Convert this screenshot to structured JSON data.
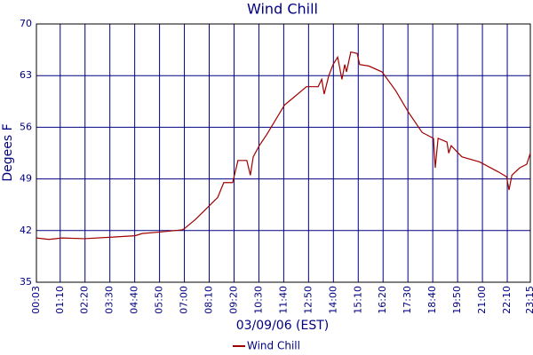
{
  "chart_data": {
    "type": "line",
    "title": "Wind Chill",
    "x_label": "03/09/06 (EST)",
    "y_label": "Degees F",
    "xlim": [
      3,
      1395
    ],
    "xticks": [
      {
        "value": 3,
        "label": "00:03"
      },
      {
        "value": 70,
        "label": "01:10"
      },
      {
        "value": 140,
        "label": "02:20"
      },
      {
        "value": 210,
        "label": "03:30"
      },
      {
        "value": 280,
        "label": "04:40"
      },
      {
        "value": 350,
        "label": "05:50"
      },
      {
        "value": 420,
        "label": "07:00"
      },
      {
        "value": 490,
        "label": "08:10"
      },
      {
        "value": 560,
        "label": "09:20"
      },
      {
        "value": 630,
        "label": "10:30"
      },
      {
        "value": 700,
        "label": "11:40"
      },
      {
        "value": 770,
        "label": "12:50"
      },
      {
        "value": 840,
        "label": "14:00"
      },
      {
        "value": 910,
        "label": "15:10"
      },
      {
        "value": 980,
        "label": "16:20"
      },
      {
        "value": 1050,
        "label": "17:30"
      },
      {
        "value": 1120,
        "label": "18:40"
      },
      {
        "value": 1190,
        "label": "19:50"
      },
      {
        "value": 1260,
        "label": "21:00"
      },
      {
        "value": 1330,
        "label": "22:10"
      },
      {
        "value": 1395,
        "label": "23:15"
      }
    ],
    "ylim": [
      35,
      70
    ],
    "yticks": [
      35,
      42,
      49,
      56,
      63,
      70
    ],
    "grid": true,
    "x": [
      3,
      38,
      76,
      138,
      213,
      281,
      301,
      351,
      414,
      421,
      451,
      489,
      514,
      531,
      556,
      571,
      596,
      606,
      614,
      631,
      652,
      702,
      727,
      764,
      797,
      807,
      814,
      827,
      839,
      852,
      864,
      872,
      877,
      889,
      907,
      914,
      940,
      977,
      1015,
      1052,
      1090,
      1122,
      1127,
      1135,
      1160,
      1165,
      1172,
      1202,
      1252,
      1303,
      1328,
      1335,
      1343,
      1365,
      1385,
      1395
    ],
    "series": [
      {
        "name": "Wind Chill",
        "color": "#a00000",
        "values": [
          41.0,
          40.8,
          41.0,
          40.9,
          41.1,
          41.3,
          41.6,
          41.8,
          42.1,
          42.3,
          43.5,
          45.3,
          46.5,
          48.5,
          48.5,
          51.5,
          51.5,
          49.5,
          52,
          53.5,
          55,
          59,
          60,
          61.5,
          61.5,
          62.5,
          60.5,
          63,
          64.5,
          65.5,
          62.5,
          64.5,
          63.5,
          66.2,
          66,
          64.5,
          64.3,
          63.5,
          61,
          58,
          55.3,
          54.5,
          50.5,
          54.5,
          54,
          52.5,
          53.5,
          52,
          51.3,
          50,
          49.3,
          47.5,
          49.5,
          50.5,
          51,
          52.5
        ]
      }
    ]
  }
}
